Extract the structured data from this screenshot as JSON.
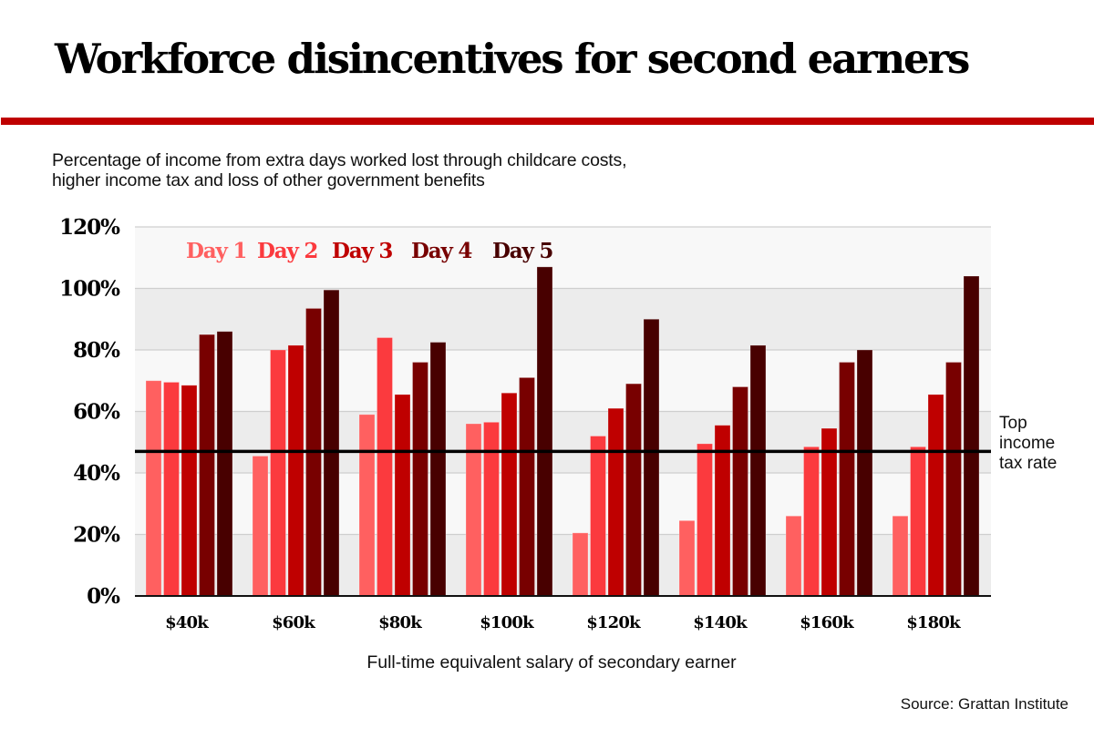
{
  "header": {
    "title": "Workforce disincentives for second earners",
    "subtitle_lines": [
      "Percentage of income from extra days worked lost through childcare costs,",
      "higher income tax and loss of other government benefits"
    ]
  },
  "footer": {
    "source": "Source: Grattan Institute"
  },
  "chart_data": {
    "type": "bar",
    "title": "Workforce disincentives for second earners",
    "subtitle": "Percentage of income from extra days worked lost through childcare costs, higher income tax and loss of other government benefits",
    "xlabel": "Full-time equivalent salary of secondary earner",
    "ylabel": "",
    "ylim": [
      0,
      120
    ],
    "yticks": [
      0,
      20,
      40,
      60,
      80,
      100,
      120
    ],
    "ytick_labels": [
      "0%",
      "20%",
      "40%",
      "60%",
      "80%",
      "100%",
      "120%"
    ],
    "grid": true,
    "legend_position": "top-left",
    "categories": [
      "$40k",
      "$60k",
      "$80k",
      "$100k",
      "$120k",
      "$140k",
      "$160k",
      "$180k"
    ],
    "series": [
      {
        "name": "Day 1",
        "color": "#ff6060",
        "values": [
          70,
          45.5,
          59,
          56,
          20.5,
          24.5,
          26,
          26
        ]
      },
      {
        "name": "Day 2",
        "color": "#fb3a3e",
        "values": [
          69.5,
          80,
          84,
          56.5,
          52,
          49.5,
          48.5,
          48.5
        ]
      },
      {
        "name": "Day 3",
        "color": "#bf0000",
        "values": [
          68.5,
          81.5,
          65.5,
          66,
          61,
          55.5,
          54.5,
          65.5
        ]
      },
      {
        "name": "Day 4",
        "color": "#780000",
        "values": [
          85,
          93.5,
          76,
          71,
          69,
          68,
          76,
          76
        ]
      },
      {
        "name": "Day 5",
        "color": "#480000",
        "values": [
          86,
          99.5,
          82.5,
          107,
          90,
          81.5,
          80,
          104
        ]
      }
    ],
    "reference_line": {
      "value": 47,
      "label_lines": [
        "Top",
        "income",
        "tax rate"
      ],
      "color": "#000000"
    }
  }
}
